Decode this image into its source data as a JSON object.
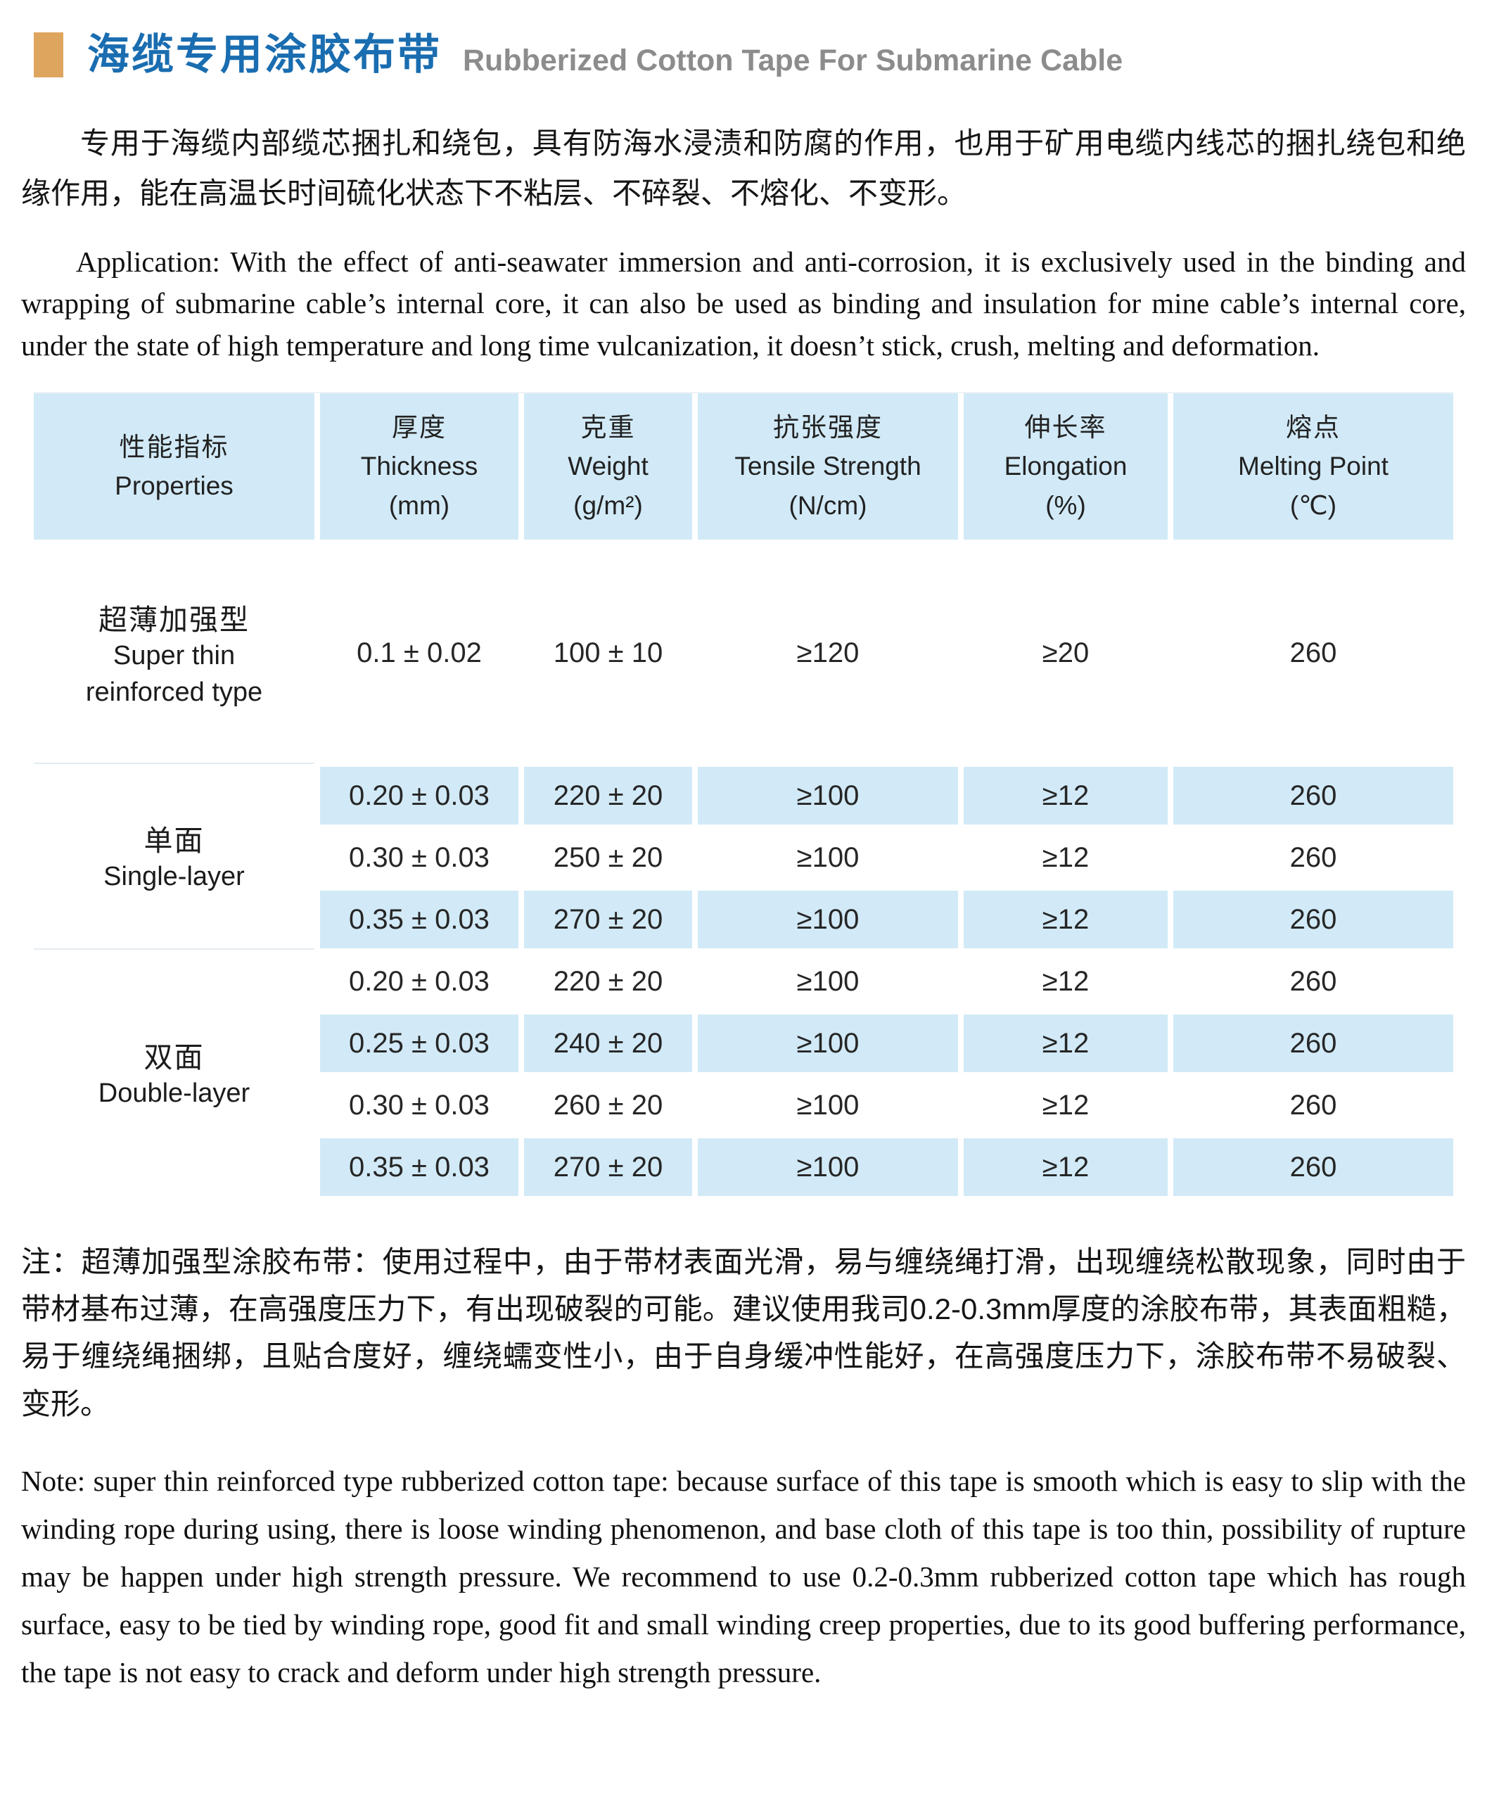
{
  "header": {
    "title_zh": "海缆专用涂胶布带",
    "title_en": "Rubberized Cotton Tape For Submarine Cable",
    "accent_color": "#dea55e",
    "title_zh_color": "#1a6db0",
    "title_en_color": "#8c8c8c"
  },
  "intro": {
    "zh": "专用于海缆内部缆芯捆扎和绕包，具有防海水浸渍和防腐的作用，也用于矿用电缆内线芯的捆扎绕包和绝缘作用，能在高温长时间硫化状态下不粘层、不碎裂、不熔化、不变形。",
    "en": "Application: With the effect of anti-seawater immersion and anti-corrosion, it is exclusively used in the binding and wrapping of submarine cable’s internal core, it can also be used as binding and insulation for mine cable’s internal core, under the state of high temperature and long time vulcanization, it doesn’t stick, crush, melting and deformation."
  },
  "table": {
    "header_bg": "#d2eaf7",
    "shaded_row_bg": "#d2eaf7",
    "columns": [
      {
        "zh": "性能指标",
        "en": "Properties",
        "unit": ""
      },
      {
        "zh": "厚度",
        "en": "Thickness",
        "unit": "(mm)"
      },
      {
        "zh": "克重",
        "en": "Weight",
        "unit": "(g/m²)"
      },
      {
        "zh": "抗张强度",
        "en": "Tensile Strength",
        "unit": "(N/cm)"
      },
      {
        "zh": "伸长率",
        "en": "Elongation",
        "unit": "(%)"
      },
      {
        "zh": "熔点",
        "en": "Melting Point",
        "unit": "(℃)"
      }
    ],
    "groups": [
      {
        "label_zh": "超薄加强型",
        "label_en": "Super thin reinforced type",
        "rows": [
          {
            "thickness": "0.1 ± 0.02",
            "weight": "100 ± 10",
            "tensile": "≥120",
            "elongation": "≥20",
            "melting": "260",
            "shaded": false
          }
        ]
      },
      {
        "label_zh": "单面",
        "label_en": "Single-layer",
        "rows": [
          {
            "thickness": "0.20 ± 0.03",
            "weight": "220 ± 20",
            "tensile": "≥100",
            "elongation": "≥12",
            "melting": "260",
            "shaded": true
          },
          {
            "thickness": "0.30 ± 0.03",
            "weight": "250 ± 20",
            "tensile": "≥100",
            "elongation": "≥12",
            "melting": "260",
            "shaded": false
          },
          {
            "thickness": "0.35 ± 0.03",
            "weight": "270 ± 20",
            "tensile": "≥100",
            "elongation": "≥12",
            "melting": "260",
            "shaded": true
          }
        ]
      },
      {
        "label_zh": "双面",
        "label_en": "Double-layer",
        "rows": [
          {
            "thickness": "0.20 ± 0.03",
            "weight": "220 ± 20",
            "tensile": "≥100",
            "elongation": "≥12",
            "melting": "260",
            "shaded": false
          },
          {
            "thickness": "0.25 ± 0.03",
            "weight": "240 ± 20",
            "tensile": "≥100",
            "elongation": "≥12",
            "melting": "260",
            "shaded": true
          },
          {
            "thickness": "0.30 ± 0.03",
            "weight": "260 ± 20",
            "tensile": "≥100",
            "elongation": "≥12",
            "melting": "260",
            "shaded": false
          },
          {
            "thickness": "0.35 ± 0.03",
            "weight": "270 ± 20",
            "tensile": "≥100",
            "elongation": "≥12",
            "melting": "260",
            "shaded": true
          }
        ]
      }
    ]
  },
  "notes": {
    "zh": "注：超薄加强型涂胶布带：使用过程中，由于带材表面光滑，易与缠绕绳打滑，出现缠绕松散现象，同时由于带材基布过薄，在高强度压力下，有出现破裂的可能。建议使用我司0.2-0.3mm厚度的涂胶布带，其表面粗糙，易于缠绕绳捆绑，且贴合度好，缠绕蠕变性小，由于自身缓冲性能好，在高强度压力下，涂胶布带不易破裂、变形。",
    "en": "Note: super thin reinforced type rubberized cotton tape: because surface of this tape is smooth which is easy to slip with the winding rope during using, there is loose winding phenomenon, and base cloth of this tape is too thin, possibility of rupture may be happen under high strength pressure. We recommend to use 0.2-0.3mm rubberized cotton tape which has rough surface, easy to be tied by winding rope, good fit and small winding creep properties, due to its good buffering performance, the tape is not easy to crack and deform under high strength pressure."
  }
}
